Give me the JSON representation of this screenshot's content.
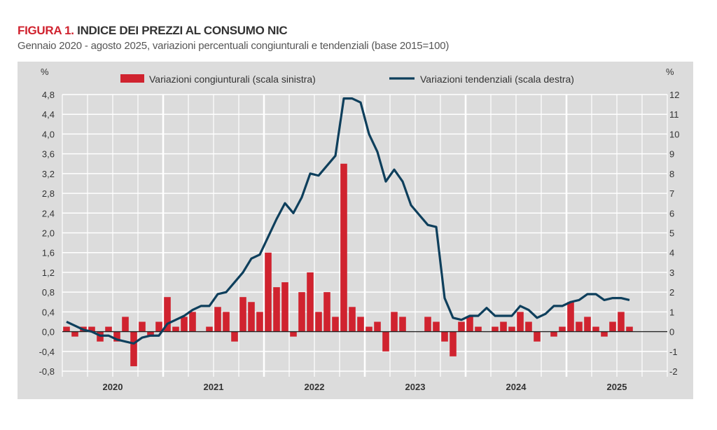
{
  "header": {
    "figure_label": "FIGURA 1.",
    "title": " INDICE DEI PREZZI AL CONSUMO NIC",
    "subtitle": "Gennaio 2020 - agosto 2025, variazioni percentuali congiunturali e tendenziali (base 2015=100)"
  },
  "chart_data": {
    "type": "bar+line",
    "title": "INDICE DEI PREZZI AL CONSUMO NIC",
    "left_unit": "%",
    "right_unit": "%",
    "left_ylim": [
      -0.8,
      4.8
    ],
    "right_ylim": [
      -2,
      12
    ],
    "left_ticks": [
      "4,8",
      "4,4",
      "4,0",
      "3,6",
      "3,2",
      "2,8",
      "2,4",
      "2,0",
      "1,6",
      "1,2",
      "0,8",
      "0,4",
      "0,0",
      "-0,4",
      "-0,8"
    ],
    "right_ticks": [
      "12",
      "11",
      "10",
      "9",
      "8",
      "7",
      "6",
      "5",
      "4",
      "3",
      "2",
      "1",
      "0",
      "-1",
      "-2"
    ],
    "years": [
      "2020",
      "2021",
      "2022",
      "2023",
      "2024",
      "2025"
    ],
    "grid": true,
    "legend_position": "top",
    "colors": {
      "bar": "#d0232f",
      "line": "#0e3f5c",
      "panel": "#dcdcdc"
    },
    "series": [
      {
        "name": "Variazioni congiunturali (scala sinistra)",
        "type": "bar",
        "axis": "left",
        "values": [
          0.1,
          -0.1,
          0.1,
          0.1,
          -0.2,
          0.1,
          -0.2,
          0.3,
          -0.7,
          0.2,
          -0.1,
          0.2,
          0.7,
          0.1,
          0.3,
          0.4,
          0.0,
          0.1,
          0.5,
          0.4,
          -0.2,
          0.7,
          0.6,
          0.4,
          1.6,
          0.9,
          1.0,
          -0.1,
          0.8,
          1.2,
          0.4,
          0.8,
          0.3,
          3.4,
          0.5,
          0.3,
          0.1,
          0.2,
          -0.4,
          0.4,
          0.3,
          0.0,
          0.0,
          0.3,
          0.2,
          -0.2,
          -0.5,
          0.2,
          0.3,
          0.1,
          0.0,
          0.1,
          0.2,
          0.1,
          0.4,
          0.2,
          -0.2,
          0.0,
          -0.1,
          0.1,
          0.6,
          0.2,
          0.3,
          0.1,
          -0.1,
          0.2,
          0.4,
          0.1
        ]
      },
      {
        "name": "Variazioni tendenziali (scala destra)",
        "type": "line",
        "axis": "right",
        "values": [
          0.5,
          0.3,
          0.1,
          0.0,
          -0.2,
          -0.2,
          -0.4,
          -0.5,
          -0.6,
          -0.3,
          -0.2,
          -0.2,
          0.4,
          0.6,
          0.8,
          1.1,
          1.3,
          1.3,
          1.9,
          2.0,
          2.5,
          3.0,
          3.7,
          3.9,
          4.8,
          5.7,
          6.5,
          6.0,
          6.8,
          8.0,
          7.9,
          8.4,
          8.9,
          11.8,
          11.8,
          11.6,
          10.0,
          9.1,
          7.6,
          8.2,
          7.6,
          6.4,
          5.9,
          5.4,
          5.3,
          1.7,
          0.7,
          0.6,
          0.8,
          0.8,
          1.2,
          0.8,
          0.8,
          0.8,
          1.3,
          1.1,
          0.7,
          0.9,
          1.3,
          1.3,
          1.5,
          1.6,
          1.9,
          1.9,
          1.6,
          1.7,
          1.7,
          1.6
        ]
      }
    ]
  }
}
